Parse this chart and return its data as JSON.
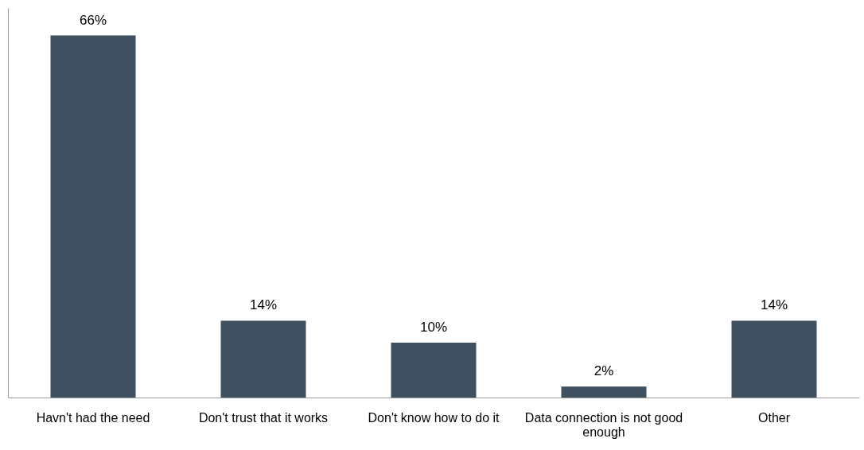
{
  "chart_data": {
    "type": "bar",
    "categories": [
      "Havn't had the need",
      "Don't trust that it works",
      "Don't know how to do it",
      "Data connection is not good enough",
      "Other"
    ],
    "values": [
      66,
      14,
      10,
      2,
      14
    ],
    "value_labels": [
      "66%",
      "14%",
      "10%",
      "2%",
      "14%"
    ],
    "color": "#3f5060",
    "ylim": [
      0,
      71
    ]
  }
}
